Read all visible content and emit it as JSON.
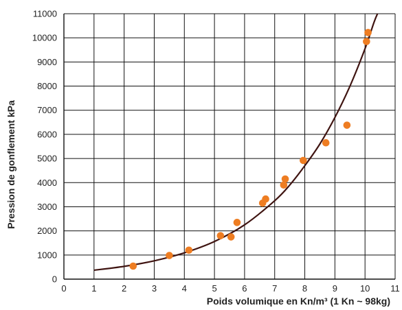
{
  "chart_data": {
    "type": "scatter",
    "xlabel": "Poids volumique en Kn/m³ (1 Kn ~ 98kg)",
    "ylabel": "Pression de gonflement kPa",
    "xlim": [
      0,
      11
    ],
    "ylim": [
      0,
      11000
    ],
    "xticks": [
      "0",
      "1",
      "2",
      "3",
      "4",
      "5",
      "6",
      "7",
      "8",
      "9",
      "10",
      "11"
    ],
    "yticks": [
      "0",
      "1000",
      "2000",
      "3000",
      "4000",
      "5000",
      "6000",
      "7000",
      "8000",
      "9000",
      "10000",
      "11000"
    ],
    "grid": true,
    "series": [
      {
        "kind": "scatter",
        "color": "#ee7d22",
        "points": [
          [
            2.3,
            540
          ],
          [
            3.5,
            980
          ],
          [
            4.15,
            1200
          ],
          [
            5.2,
            1800
          ],
          [
            5.55,
            1750
          ],
          [
            5.75,
            2350
          ],
          [
            6.6,
            3150
          ],
          [
            6.7,
            3320
          ],
          [
            7.3,
            3900
          ],
          [
            7.35,
            4150
          ],
          [
            7.95,
            4920
          ],
          [
            8.7,
            5650
          ],
          [
            9.4,
            6380
          ],
          [
            10.05,
            9850
          ],
          [
            10.1,
            10220
          ]
        ]
      },
      {
        "kind": "line",
        "color": "#3f1411",
        "points": [
          [
            1.0,
            370
          ],
          [
            2.0,
            530
          ],
          [
            3.0,
            760
          ],
          [
            4.0,
            1090
          ],
          [
            5.0,
            1560
          ],
          [
            6.0,
            2250
          ],
          [
            7.0,
            3250
          ],
          [
            7.5,
            3900
          ],
          [
            8.0,
            4700
          ],
          [
            8.5,
            5600
          ],
          [
            9.0,
            6700
          ],
          [
            9.5,
            8000
          ],
          [
            10.0,
            9550
          ],
          [
            10.3,
            10650
          ],
          [
            10.45,
            11100
          ]
        ]
      }
    ]
  }
}
